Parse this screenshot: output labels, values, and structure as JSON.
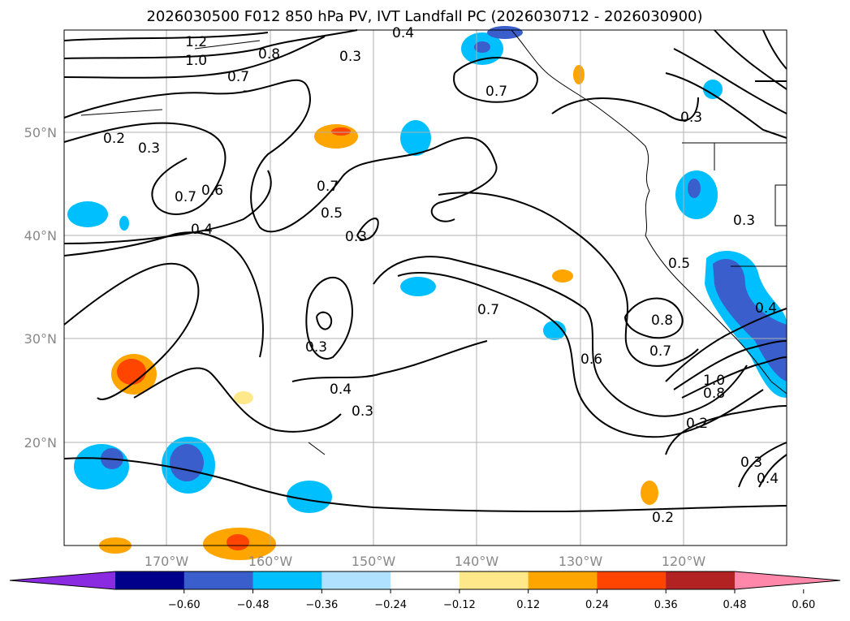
{
  "title": "2026030500 F012 850 hPa PV, IVT Landfall PC (2026030712 - 2026030900)",
  "lat_labels": [
    "50°N",
    "40°N",
    "30°N",
    "20°N"
  ],
  "lon_labels": [
    "170°W",
    "160°W",
    "150°W",
    "140°W",
    "130°W",
    "120°W"
  ],
  "contour_labels": [
    "1.2",
    "1.0",
    "0.8",
    "0.7",
    "0.4",
    "0.2",
    "0.3",
    "0.7",
    "0.6",
    "0.4",
    "0.7",
    "0.5",
    "0.3",
    "0.7",
    "0.3",
    "0.7",
    "0.6",
    "0.8",
    "0.7",
    "1.0",
    "0.8",
    "0.2",
    "0.5",
    "0.3",
    "0.3",
    "0.4",
    "0.3",
    "0.4",
    "0.3",
    "0.2",
    "0.3",
    "0.4"
  ],
  "colorbar": {
    "ticks": [
      "−0.60",
      "−0.48",
      "−0.36",
      "−0.24",
      "−0.12",
      "0.12",
      "0.24",
      "0.36",
      "0.48",
      "0.60"
    ],
    "colors": [
      "#8a2be2",
      "#00008b",
      "#3a5fcd",
      "#00bfff",
      "#b0e2ff",
      "#ffffff",
      "#ffe88a",
      "#ffa500",
      "#ff4500",
      "#b22222",
      "#ff88aa"
    ],
    "extend": "both"
  },
  "legend": {
    "type": "filled contours",
    "levels": [
      -0.6,
      -0.48,
      -0.36,
      -0.24,
      -0.12,
      0.12,
      0.24,
      0.36,
      0.48,
      0.6
    ]
  }
}
